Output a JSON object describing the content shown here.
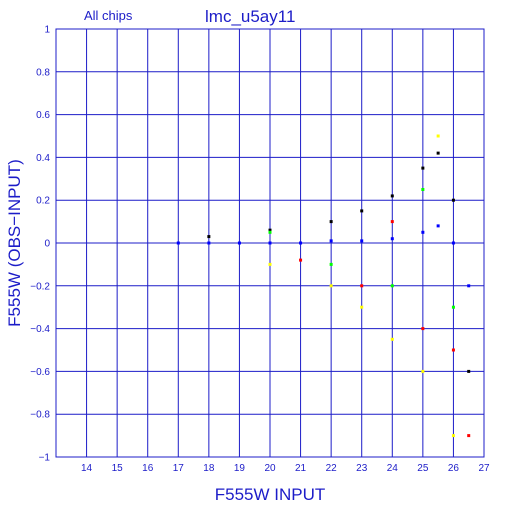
{
  "chart_data": {
    "type": "scatter",
    "title": "lmc_u5ay11",
    "subtitle": "All chips",
    "xlabel": "F555W INPUT",
    "ylabel": "F555W (OBS−INPUT)",
    "xlim": [
      13,
      27
    ],
    "ylim": [
      -1,
      1
    ],
    "x_ticks": [
      14,
      15,
      16,
      17,
      18,
      19,
      20,
      21,
      22,
      23,
      24,
      25,
      26,
      27
    ],
    "y_ticks": [
      -1,
      -0.8,
      -0.6,
      -0.4,
      -0.2,
      0,
      0.2,
      0.4,
      0.6,
      0.8,
      1
    ],
    "y_tick_labels": [
      "−1",
      "−0.8",
      "−0.6",
      "−0.4",
      "−0.2",
      "0",
      "0.2",
      "0.4",
      "0.6",
      "0.8",
      "1"
    ],
    "grid": true,
    "series": [
      {
        "color": "#0000ff",
        "values": [
          [
            17.0,
            0.0
          ],
          [
            18.0,
            0.0
          ],
          [
            19.0,
            0.0
          ],
          [
            20.0,
            0.0
          ],
          [
            21.0,
            0.0
          ],
          [
            22.0,
            0.01
          ],
          [
            23.0,
            0.01
          ],
          [
            24.0,
            0.02
          ],
          [
            25.0,
            0.05
          ],
          [
            25.5,
            0.08
          ],
          [
            26.0,
            0.0
          ],
          [
            26.5,
            -0.2
          ]
        ]
      },
      {
        "color": "#000000",
        "values": [
          [
            18.0,
            0.03
          ],
          [
            20.0,
            0.06
          ],
          [
            22.0,
            0.1
          ],
          [
            23.0,
            0.15
          ],
          [
            24.0,
            0.22
          ],
          [
            25.0,
            0.35
          ],
          [
            25.5,
            0.42
          ],
          [
            26.0,
            0.2
          ],
          [
            26.5,
            -0.6
          ]
        ]
      },
      {
        "color": "#ffff00",
        "values": [
          [
            20.0,
            -0.1
          ],
          [
            22.0,
            -0.2
          ],
          [
            23.0,
            -0.3
          ],
          [
            24.0,
            -0.45
          ],
          [
            25.0,
            -0.6
          ],
          [
            25.5,
            0.5
          ],
          [
            26.0,
            -0.9
          ]
        ]
      },
      {
        "color": "#ff0000",
        "values": [
          [
            21.0,
            -0.08
          ],
          [
            23.0,
            -0.2
          ],
          [
            24.0,
            0.1
          ],
          [
            25.0,
            -0.4
          ],
          [
            26.0,
            -0.5
          ],
          [
            26.5,
            -0.9
          ]
        ]
      },
      {
        "color": "#00ff00",
        "values": [
          [
            20.0,
            0.05
          ],
          [
            22.0,
            -0.1
          ],
          [
            24.0,
            -0.2
          ],
          [
            25.0,
            0.25
          ],
          [
            26.0,
            -0.3
          ]
        ]
      }
    ]
  }
}
